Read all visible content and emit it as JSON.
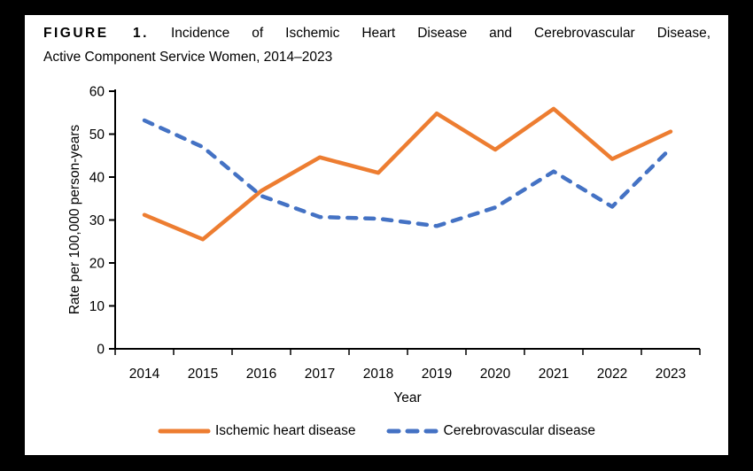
{
  "figure": {
    "label": "FIGURE 1.",
    "title_line1_rest": "Incidence of Ischemic Heart Disease and Cerebrovascular Disease,",
    "title_line2": "Active Component Service Women, 2014–2023"
  },
  "chart_data": {
    "type": "line",
    "x": [
      2014,
      2015,
      2016,
      2017,
      2018,
      2019,
      2020,
      2021,
      2022,
      2023
    ],
    "series": [
      {
        "name": "Ischemic heart disease",
        "color": "#ED7D31",
        "style": "solid",
        "values": [
          31.2,
          25.5,
          36.8,
          44.6,
          41.0,
          54.8,
          46.4,
          55.9,
          44.2,
          50.6
        ]
      },
      {
        "name": "Cerebrovascular disease",
        "color": "#4472C4",
        "style": "dashed",
        "values": [
          53.2,
          47.0,
          35.6,
          30.7,
          30.3,
          28.6,
          32.9,
          41.3,
          33.1,
          46.7
        ]
      }
    ],
    "xlabel": "Year",
    "ylabel": "Rate per 100,000 person-years",
    "ylim": [
      0,
      60
    ],
    "yticks": [
      0,
      10,
      20,
      30,
      40,
      50,
      60
    ],
    "grid": false,
    "legend_position": "bottom"
  }
}
